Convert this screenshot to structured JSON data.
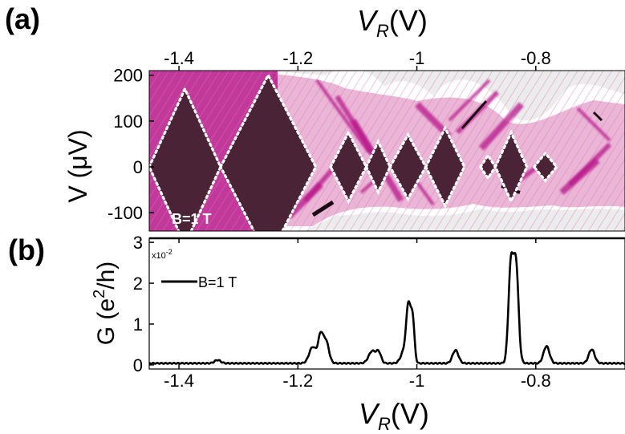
{
  "colors": {
    "map_dark": "#4a2436",
    "map_magenta": "#b8168a",
    "map_pink": "#e7a9cf",
    "map_bg": "#ececec",
    "diamond_outline": "#ffffff",
    "trace": "#000000"
  },
  "chart_data": [
    {
      "panel_label": "(a)",
      "type": "heatmap",
      "title": "",
      "xlabel_main": "V",
      "xlabel_sub": "R",
      "xlabel_unit": "(V)",
      "xaxis_position": "top",
      "ylabel": "V (μV)",
      "xlim": [
        -1.45,
        -0.65
      ],
      "ylim": [
        -140,
        210
      ],
      "x_ticks": [
        {
          "value": -1.4,
          "label": "-1.4"
        },
        {
          "value": -1.2,
          "label": "-1.2"
        },
        {
          "value": -1.0,
          "label": "-1"
        },
        {
          "value": -0.8,
          "label": "-0.8"
        }
      ],
      "y_ticks": [
        {
          "value": 200,
          "label": "200"
        },
        {
          "value": 100,
          "label": "100"
        },
        {
          "value": 0,
          "label": "0"
        },
        {
          "value": -100,
          "label": "-100"
        }
      ],
      "annotation": "B=1 T",
      "coulomb_diamonds": [
        {
          "left": -1.45,
          "right": -1.33,
          "half_height": 170
        },
        {
          "left": -1.33,
          "right": -1.17,
          "half_height": 200
        },
        {
          "left": -1.145,
          "right": -1.085,
          "half_height": 75
        },
        {
          "left": -1.085,
          "right": -1.045,
          "half_height": 55
        },
        {
          "left": -1.045,
          "right": -0.985,
          "half_height": 70
        },
        {
          "left": -0.985,
          "right": -0.92,
          "half_height": 85
        },
        {
          "left": -0.893,
          "right": -0.868,
          "half_height": 25
        },
        {
          "left": -0.868,
          "right": -0.815,
          "half_height": 75
        },
        {
          "left": -0.803,
          "right": -0.765,
          "half_height": 30
        }
      ]
    },
    {
      "panel_label": "(b)",
      "type": "line",
      "title": "",
      "xlabel_main": "V",
      "xlabel_sub": "R",
      "xlabel_unit": "(V)",
      "ylabel_main": "G (e",
      "ylabel_sup": "2",
      "ylabel_tail": "/h)",
      "scale_label": "x10",
      "scale_exp": "-2",
      "xlim": [
        -1.45,
        -0.65
      ],
      "ylim": [
        -0.1,
        3.1
      ],
      "x_ticks": [
        {
          "value": -1.4,
          "label": "-1.4"
        },
        {
          "value": -1.2,
          "label": "-1.2"
        },
        {
          "value": -1.0,
          "label": "-1"
        },
        {
          "value": -0.8,
          "label": "-0.8"
        }
      ],
      "y_ticks": [
        {
          "value": 0,
          "label": "0"
        },
        {
          "value": 1,
          "label": "1"
        },
        {
          "value": 2,
          "label": "2"
        },
        {
          "value": 3,
          "label": "3"
        }
      ],
      "legend_position": "top-left",
      "series": [
        {
          "name": "B=1 T",
          "baseline": 0.04,
          "peaks": [
            {
              "x": -1.335,
              "height": 0.08,
              "width": 0.005
            },
            {
              "x": -1.175,
              "height": 0.4,
              "width": 0.006
            },
            {
              "x": -1.162,
              "height": 0.62,
              "width": 0.004
            },
            {
              "x": -1.153,
              "height": 0.55,
              "width": 0.005
            },
            {
              "x": -1.075,
              "height": 0.3,
              "width": 0.006
            },
            {
              "x": -1.064,
              "height": 0.25,
              "width": 0.004
            },
            {
              "x": -1.014,
              "height": 1.25,
              "width": 0.0035
            },
            {
              "x": -1.007,
              "height": 1.05,
              "width": 0.003
            },
            {
              "x": -1.02,
              "height": 0.35,
              "width": 0.006
            },
            {
              "x": -0.935,
              "height": 0.32,
              "width": 0.005
            },
            {
              "x": -0.842,
              "height": 2.1,
              "width": 0.004
            },
            {
              "x": -0.833,
              "height": 2.0,
              "width": 0.004
            },
            {
              "x": -0.837,
              "height": 0.5,
              "width": 0.006
            },
            {
              "x": -0.782,
              "height": 0.42,
              "width": 0.005
            },
            {
              "x": -0.706,
              "height": 0.34,
              "width": 0.005
            }
          ]
        }
      ]
    }
  ]
}
